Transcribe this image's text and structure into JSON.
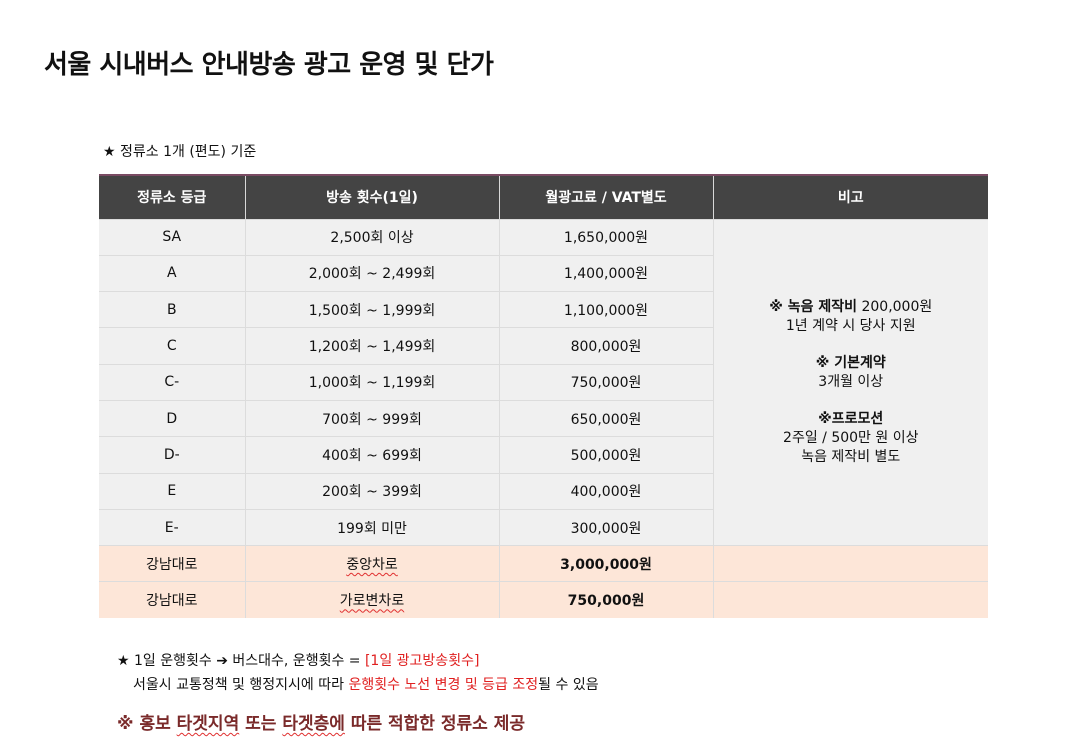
{
  "title": "서울 시내버스 안내방송 광고 운영 및 단가",
  "subtitle": "★ 정류소 1개 (편도) 기준",
  "table": {
    "headers": [
      "정류소 등급",
      "방송 횟수(1일)",
      "월광고료 / VAT별도",
      "비고"
    ],
    "rows": [
      [
        "SA",
        "2,500회 이상",
        "1,650,000원"
      ],
      [
        "A",
        "2,000회 ~ 2,499회",
        "1,400,000원"
      ],
      [
        "B",
        "1,500회 ~ 1,999회",
        "1,100,000원"
      ],
      [
        "C",
        "1,200회 ~ 1,499회",
        "800,000원"
      ],
      [
        "C-",
        "1,000회 ~ 1,199회",
        "750,000원"
      ],
      [
        "D",
        "700회 ~ 999회",
        "650,000원"
      ],
      [
        "D-",
        "400회 ~ 699회",
        "500,000원"
      ],
      [
        "E",
        "200회 ~ 399회",
        "400,000원"
      ],
      [
        "E-",
        "199회 미만",
        "300,000원"
      ]
    ],
    "special_rows": [
      [
        "강남대로",
        "중앙차로",
        "3,000,000원",
        ""
      ],
      [
        "강남대로",
        "가로변차로",
        "750,000원",
        ""
      ]
    ],
    "note": {
      "n1_head": "※ 녹음 제작비",
      "n1_val": " 200,000원",
      "n1_line2": "1년 계약 시 당사 지원",
      "n2_head": "※ 기본계약",
      "n2_line2": "3개월 이상",
      "n3_head": "※프로모션",
      "n3_line2": "2주일 / 500만 원 이상",
      "n3_line3": "녹음 제작비 별도"
    }
  },
  "footer": {
    "line1_a": "★ 1일 운행횟수 ➔  버스대수, 운행횟수 = ",
    "line1_b": "[1일 광고방송횟수]",
    "line2_a": "서울시 교통정책 및 행정지시에 따라 ",
    "line2_b": "운행횟수 노선 변경 및 등급 조정",
    "line2_c": "될 수 있음",
    "line3_a": "※ 홍보 ",
    "line3_b": "타겟지역",
    "line3_c": " 또는 ",
    "line3_d": "타겟층에",
    "line3_e": " 따른 적합한 정류소 제공"
  }
}
